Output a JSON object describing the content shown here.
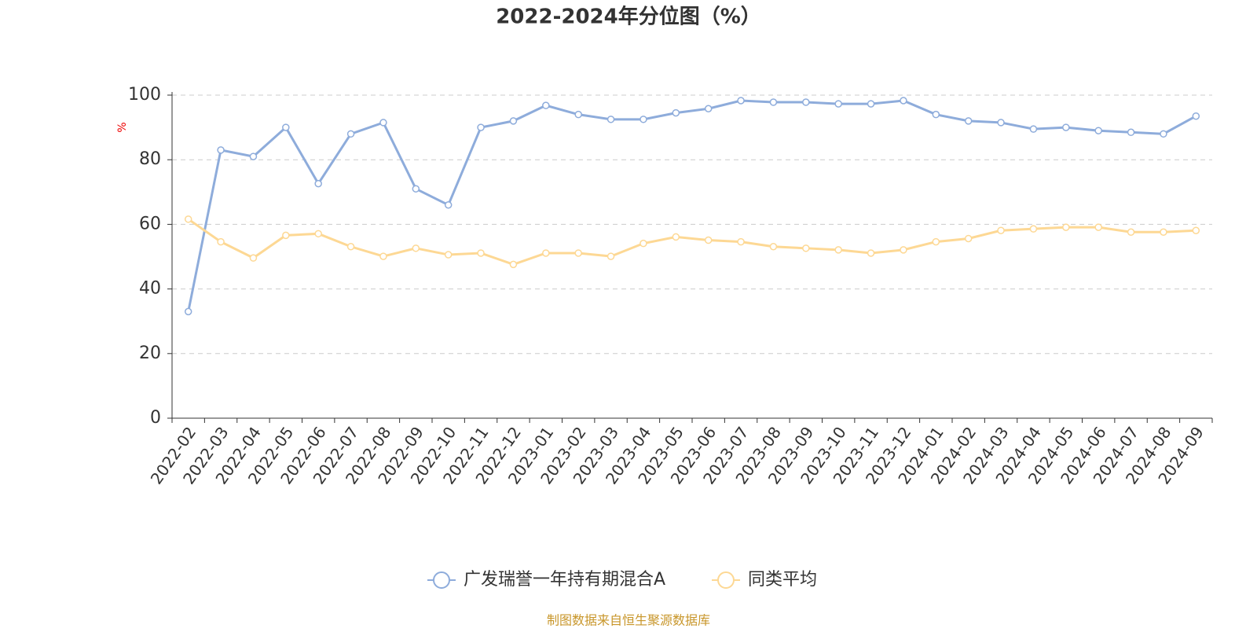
{
  "chart_data": {
    "type": "line",
    "title": "2022-2024年分位图（%）",
    "y_label": "%",
    "source": "制图数据来自恒生聚源数据库",
    "categories": [
      "2022-02",
      "2022-03",
      "2022-04",
      "2022-05",
      "2022-06",
      "2022-07",
      "2022-08",
      "2022-09",
      "2022-10",
      "2022-11",
      "2022-12",
      "2023-01",
      "2023-02",
      "2023-03",
      "2023-04",
      "2023-05",
      "2023-06",
      "2023-07",
      "2023-08",
      "2023-09",
      "2023-10",
      "2023-11",
      "2023-12",
      "2024-01",
      "2024-02",
      "2024-03",
      "2024-04",
      "2024-05",
      "2024-06",
      "2024-07",
      "2024-08",
      "2024-09"
    ],
    "series": [
      {
        "name": "广发瑞誉一年持有期混合A",
        "color": "#8eacdb",
        "values": [
          33,
          83,
          81,
          90,
          72.6,
          88,
          91.5,
          71,
          66,
          90,
          92,
          96.8,
          94,
          92.5,
          92.5,
          94.5,
          95.8,
          98.3,
          97.8,
          97.8,
          97.3,
          97.3,
          98.3,
          94,
          92,
          91.5,
          89.5,
          90,
          89,
          88.5,
          88,
          93.5
        ]
      },
      {
        "name": "同类平均",
        "color": "#fdd894",
        "values": [
          61.6,
          54.6,
          49.6,
          56.6,
          57.1,
          53.1,
          50.1,
          52.6,
          50.6,
          51.1,
          47.6,
          51.1,
          51.1,
          50.1,
          54.1,
          56.1,
          55.1,
          54.6,
          53.1,
          52.6,
          52.1,
          51.1,
          52.1,
          54.6,
          55.6,
          58.1,
          58.6,
          59.1,
          59.1,
          57.6,
          57.6,
          58.1
        ]
      }
    ],
    "ylim": [
      0,
      100
    ],
    "yticks": [
      0,
      20,
      40,
      60,
      80,
      100
    ],
    "grid": true
  }
}
